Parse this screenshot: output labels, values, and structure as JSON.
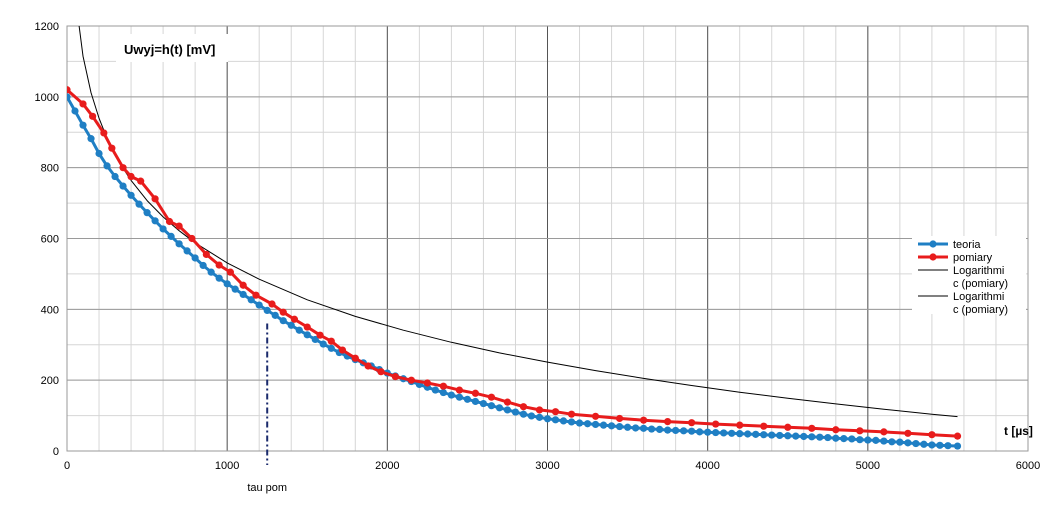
{
  "chart_data": {
    "type": "line",
    "title": "Uwyj=h(t) [mV]",
    "xlabel": "t [µs]",
    "ylabel": "",
    "xlim": [
      0,
      6000
    ],
    "ylim": [
      0,
      1200
    ],
    "x_major_ticks": [
      0,
      1000,
      2000,
      3000,
      4000,
      5000,
      6000
    ],
    "y_major_ticks": [
      0,
      200,
      400,
      600,
      800,
      1000,
      1200
    ],
    "x_minor_step": 200,
    "y_minor_step": 100,
    "grid": true,
    "legend_position": "right",
    "annotation": {
      "label": "tau pom",
      "x": 1250,
      "y": 360
    },
    "series": [
      {
        "name": "teoria",
        "color": "#1f7fc4",
        "markers": true,
        "x": [
          0,
          50,
          100,
          150,
          200,
          250,
          300,
          350,
          400,
          450,
          500,
          550,
          600,
          650,
          700,
          750,
          800,
          850,
          900,
          950,
          1000,
          1050,
          1100,
          1150,
          1200,
          1250,
          1300,
          1350,
          1400,
          1450,
          1500,
          1550,
          1600,
          1650,
          1700,
          1750,
          1800,
          1850,
          1900,
          1950,
          2000,
          2050,
          2100,
          2150,
          2200,
          2250,
          2300,
          2350,
          2400,
          2450,
          2500,
          2550,
          2600,
          2650,
          2700,
          2750,
          2800,
          2850,
          2900,
          2950,
          3000,
          3050,
          3100,
          3150,
          3200,
          3250,
          3300,
          3350,
          3400,
          3450,
          3500,
          3550,
          3600,
          3650,
          3700,
          3750,
          3800,
          3850,
          3900,
          3950,
          4000,
          4050,
          4100,
          4150,
          4200,
          4250,
          4300,
          4350,
          4400,
          4450,
          4500,
          4550,
          4600,
          4650,
          4700,
          4750,
          4800,
          4850,
          4900,
          4950,
          5000,
          5050,
          5100,
          5150,
          5200,
          5250,
          5300,
          5350,
          5400,
          5450,
          5500,
          5560
        ],
        "y": [
          1000,
          960,
          920,
          882,
          840,
          805,
          775,
          748,
          722,
          697,
          673,
          650,
          627,
          606,
          585,
          565,
          545,
          524,
          505,
          488,
          472,
          457,
          442,
          427,
          412,
          397,
          383,
          368,
          355,
          341,
          328,
          315,
          302,
          290,
          278,
          268,
          258,
          249,
          240,
          230,
          220,
          212,
          204,
          196,
          188,
          180,
          172,
          165,
          158,
          152,
          146,
          140,
          134,
          128,
          122,
          116,
          110,
          104,
          99,
          95,
          91,
          88,
          85,
          82,
          79,
          77,
          75,
          73,
          71,
          69,
          67,
          65,
          64,
          62,
          61,
          59,
          58,
          57,
          56,
          54,
          53,
          52,
          51,
          50,
          49,
          48,
          47,
          46,
          45,
          44,
          43,
          42,
          41,
          40,
          39,
          38,
          36,
          35,
          34,
          32,
          31,
          30,
          28,
          26,
          25,
          23,
          21,
          19,
          17,
          16,
          15,
          14
        ]
      },
      {
        "name": "pomiary",
        "color": "#e81c1c",
        "markers": true,
        "x": [
          0,
          100,
          160,
          230,
          280,
          350,
          400,
          460,
          550,
          640,
          700,
          780,
          870,
          950,
          1020,
          1100,
          1180,
          1280,
          1350,
          1420,
          1500,
          1580,
          1650,
          1720,
          1800,
          1880,
          1960,
          2050,
          2150,
          2250,
          2350,
          2450,
          2550,
          2650,
          2750,
          2850,
          2950,
          3050,
          3150,
          3300,
          3450,
          3600,
          3750,
          3900,
          4050,
          4200,
          4350,
          4500,
          4650,
          4800,
          4950,
          5100,
          5250,
          5400,
          5560
        ],
        "y": [
          1020,
          980,
          945,
          898,
          855,
          800,
          775,
          762,
          712,
          648,
          635,
          600,
          555,
          525,
          505,
          468,
          440,
          415,
          392,
          372,
          350,
          327,
          310,
          285,
          262,
          240,
          224,
          210,
          200,
          192,
          183,
          172,
          163,
          152,
          138,
          125,
          116,
          111,
          104,
          98,
          92,
          87,
          83,
          80,
          76,
          73,
          70,
          67,
          64,
          60,
          57,
          54,
          50,
          46,
          42
        ]
      },
      {
        "name": "Logarithmi\nc (pomiary)",
        "color": "#000000",
        "markers": false,
        "x": [
          50,
          100,
          150,
          200,
          250,
          300,
          350,
          400,
          500,
          600,
          700,
          800,
          1000,
          1200,
          1500,
          1800,
          2100,
          2400,
          2700,
          3000,
          3300,
          3600,
          3900,
          4200,
          4500,
          4800,
          5100,
          5400,
          5560
        ],
        "y": [
          1290,
          1115,
          1012,
          940,
          883,
          837,
          798,
          764,
          707,
          661,
          622,
          588,
          531,
          485,
          427,
          380,
          341,
          307,
          277,
          251,
          227,
          205,
          185,
          166,
          149,
          133,
          118,
          104,
          97
        ]
      },
      {
        "name": "Logarithmi\nc (pomiary)",
        "color": "#000000",
        "markers": false,
        "x": [],
        "y": []
      }
    ]
  }
}
